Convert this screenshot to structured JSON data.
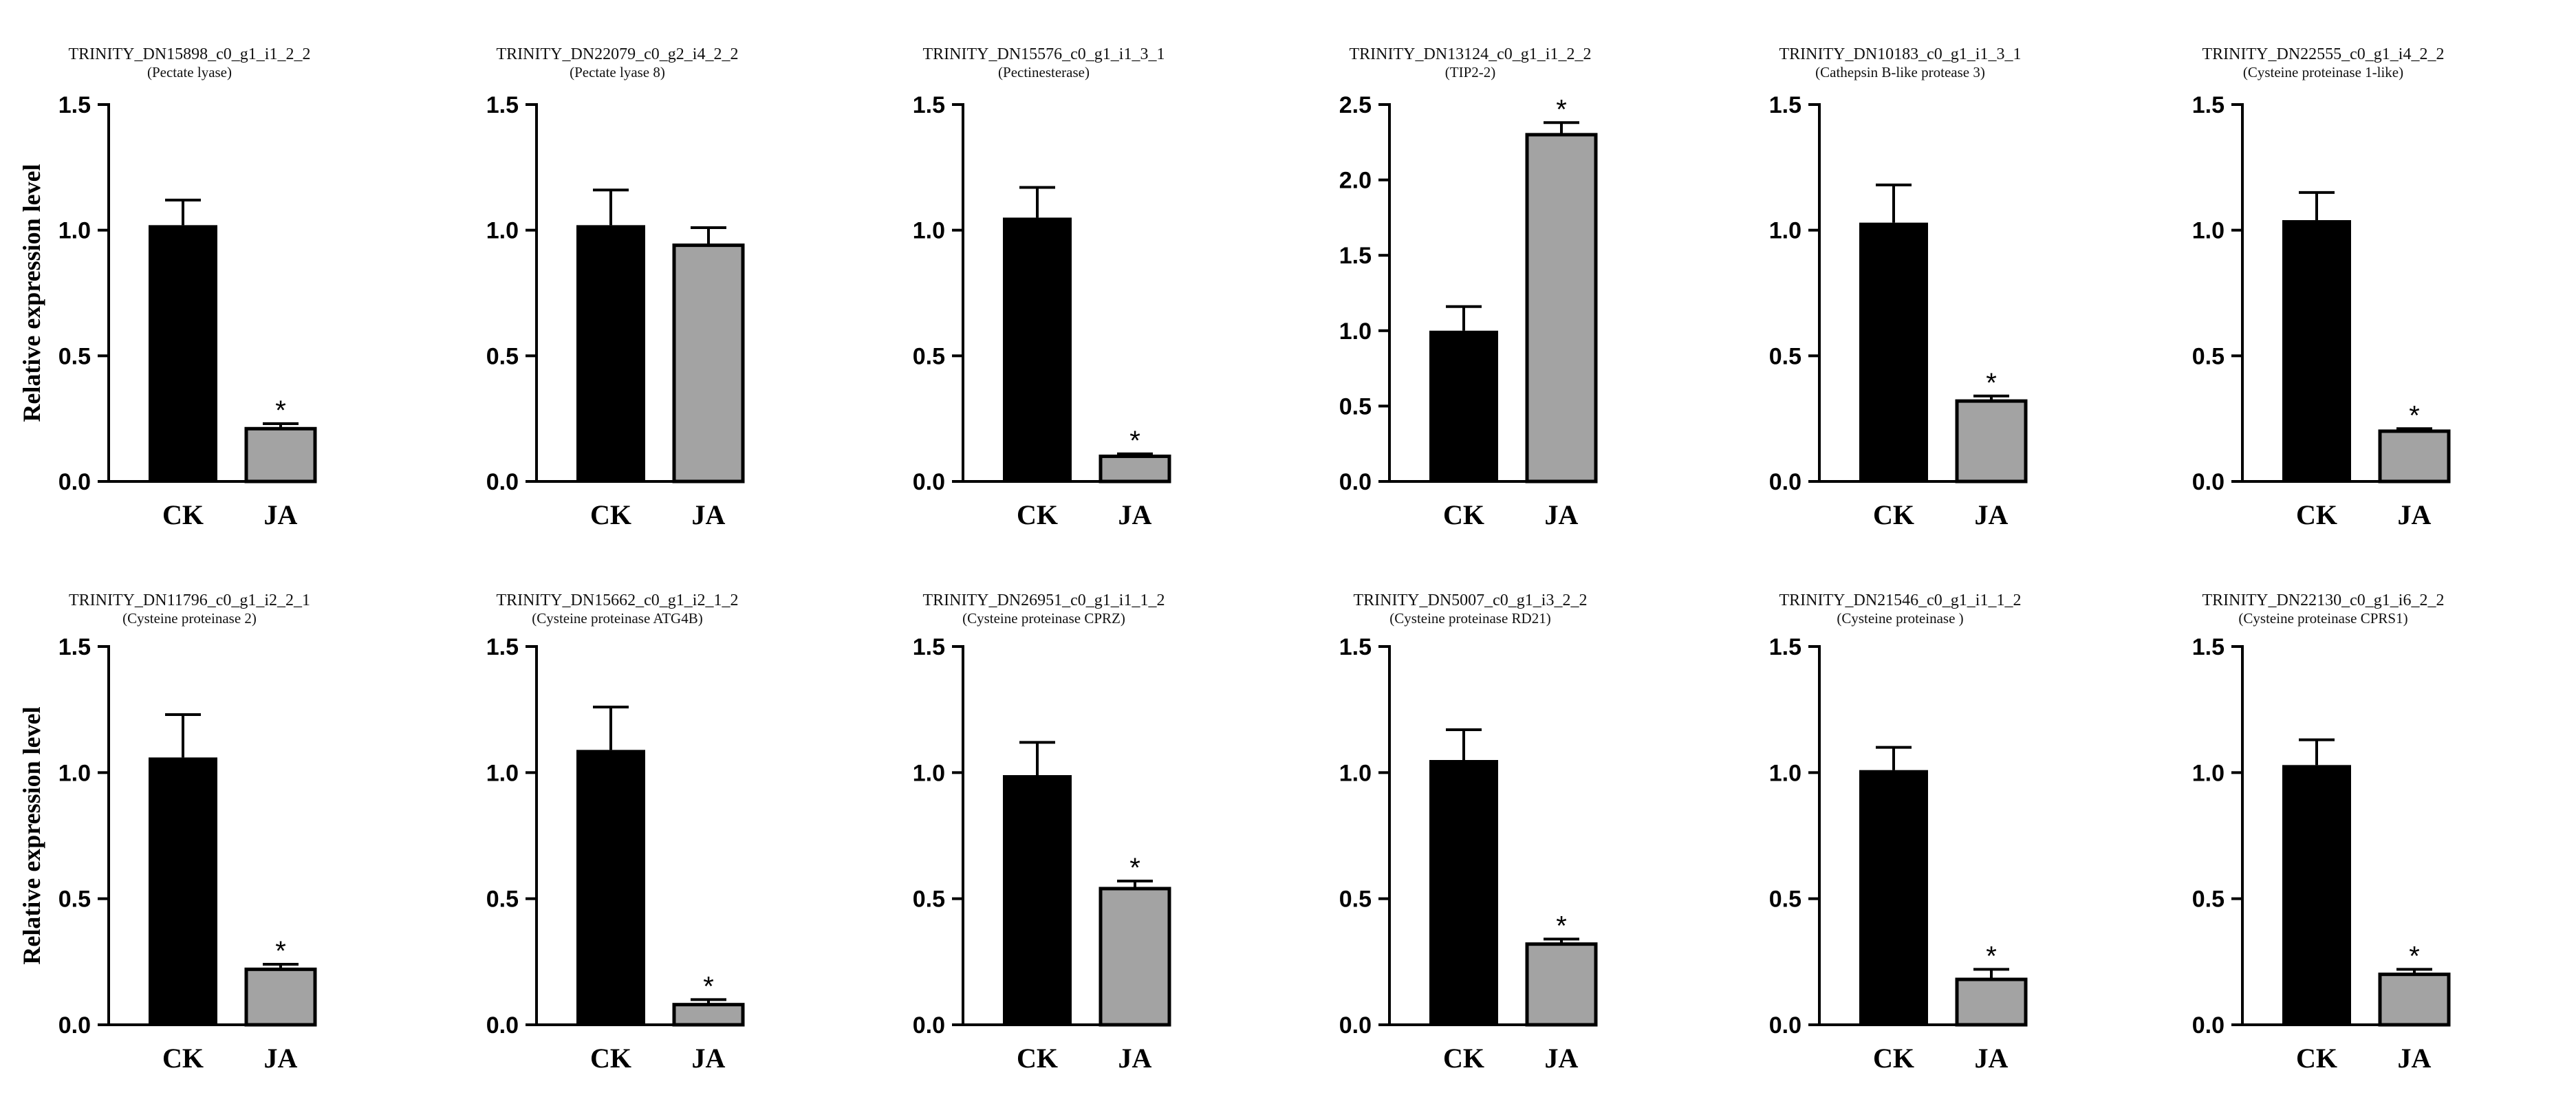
{
  "chart_data": [
    {
      "type": "bar",
      "title": "TRINITY_DN15898_c0_g1_i1_2_2",
      "subtitle": "(Pectate lyase)",
      "categories": [
        "CK",
        "JA"
      ],
      "values": [
        1.02,
        0.21
      ],
      "errors": [
        0.1,
        0.02
      ],
      "significance": [
        "",
        "*"
      ],
      "ylabel": "Relative expression level",
      "ylim": [
        0,
        1.5
      ],
      "yticks": [
        "0.0",
        "0.5",
        "1.0",
        "1.5"
      ],
      "colors": [
        "#000000",
        "#a3a3a3"
      ]
    },
    {
      "type": "bar",
      "title": "TRINITY_DN22079_c0_g2_i4_2_2",
      "subtitle": "(Pectate lyase 8)",
      "categories": [
        "CK",
        "JA"
      ],
      "values": [
        1.02,
        0.94
      ],
      "errors": [
        0.14,
        0.07
      ],
      "significance": [
        "",
        ""
      ],
      "ylabel": "",
      "ylim": [
        0,
        1.5
      ],
      "yticks": [
        "0.0",
        "0.5",
        "1.0",
        "1.5"
      ],
      "colors": [
        "#000000",
        "#a3a3a3"
      ]
    },
    {
      "type": "bar",
      "title": "TRINITY_DN15576_c0_g1_i1_3_1",
      "subtitle": "(Pectinesterase)",
      "categories": [
        "CK",
        "JA"
      ],
      "values": [
        1.05,
        0.1
      ],
      "errors": [
        0.12,
        0.01
      ],
      "significance": [
        "",
        "*"
      ],
      "ylabel": "",
      "ylim": [
        0,
        1.5
      ],
      "yticks": [
        "0.0",
        "0.5",
        "1.0",
        "1.5"
      ],
      "colors": [
        "#000000",
        "#a3a3a3"
      ]
    },
    {
      "type": "bar",
      "title": "TRINITY_DN13124_c0_g1_i1_2_2",
      "subtitle": "(TIP2-2)",
      "categories": [
        "CK",
        "JA"
      ],
      "values": [
        1.0,
        2.3
      ],
      "errors": [
        0.16,
        0.08
      ],
      "significance": [
        "",
        "*"
      ],
      "ylabel": "",
      "ylim": [
        0,
        2.5
      ],
      "yticks": [
        "0.0",
        "0.5",
        "1.0",
        "1.5",
        "2.0",
        "2.5"
      ],
      "colors": [
        "#000000",
        "#a3a3a3"
      ]
    },
    {
      "type": "bar",
      "title": "TRINITY_DN10183_c0_g1_i1_3_1",
      "subtitle": "(Cathepsin B-like protease 3)",
      "categories": [
        "CK",
        "JA"
      ],
      "values": [
        1.03,
        0.32
      ],
      "errors": [
        0.15,
        0.02
      ],
      "significance": [
        "",
        "*"
      ],
      "ylabel": "",
      "ylim": [
        0,
        1.5
      ],
      "yticks": [
        "0.0",
        "0.5",
        "1.0",
        "1.5"
      ],
      "colors": [
        "#000000",
        "#a3a3a3"
      ]
    },
    {
      "type": "bar",
      "title": "TRINITY_DN22555_c0_g1_i4_2_2",
      "subtitle": "(Cysteine proteinase 1-like)",
      "categories": [
        "CK",
        "JA"
      ],
      "values": [
        1.04,
        0.2
      ],
      "errors": [
        0.11,
        0.01
      ],
      "significance": [
        "",
        "*"
      ],
      "ylabel": "",
      "ylim": [
        0,
        1.5
      ],
      "yticks": [
        "0.0",
        "0.5",
        "1.0",
        "1.5"
      ],
      "colors": [
        "#000000",
        "#a3a3a3"
      ]
    },
    {
      "type": "bar",
      "title": "TRINITY_DN11796_c0_g1_i2_2_1",
      "subtitle": "(Cysteine proteinase 2)",
      "categories": [
        "CK",
        "JA"
      ],
      "values": [
        1.06,
        0.22
      ],
      "errors": [
        0.17,
        0.02
      ],
      "significance": [
        "",
        "*"
      ],
      "ylabel": "Relative expression level",
      "ylim": [
        0,
        1.5
      ],
      "yticks": [
        "0.0",
        "0.5",
        "1.0",
        "1.5"
      ],
      "colors": [
        "#000000",
        "#a3a3a3"
      ]
    },
    {
      "type": "bar",
      "title": "TRINITY_DN15662_c0_g1_i2_1_2",
      "subtitle": "(Cysteine proteinase ATG4B)",
      "categories": [
        "CK",
        "JA"
      ],
      "values": [
        1.09,
        0.08
      ],
      "errors": [
        0.17,
        0.02
      ],
      "significance": [
        "",
        "*"
      ],
      "ylabel": "",
      "ylim": [
        0,
        1.5
      ],
      "yticks": [
        "0.0",
        "0.5",
        "1.0",
        "1.5"
      ],
      "colors": [
        "#000000",
        "#a3a3a3"
      ]
    },
    {
      "type": "bar",
      "title": "TRINITY_DN26951_c0_g1_i1_1_2",
      "subtitle": "(Cysteine proteinase CPRZ)",
      "categories": [
        "CK",
        "JA"
      ],
      "values": [
        0.99,
        0.54
      ],
      "errors": [
        0.13,
        0.03
      ],
      "significance": [
        "",
        "*"
      ],
      "ylabel": "",
      "ylim": [
        0,
        1.5
      ],
      "yticks": [
        "0.0",
        "0.5",
        "1.0",
        "1.5"
      ],
      "colors": [
        "#000000",
        "#a3a3a3"
      ]
    },
    {
      "type": "bar",
      "title": "TRINITY_DN5007_c0_g1_i3_2_2",
      "subtitle": "(Cysteine proteinase RD21)",
      "categories": [
        "CK",
        "JA"
      ],
      "values": [
        1.05,
        0.32
      ],
      "errors": [
        0.12,
        0.02
      ],
      "significance": [
        "",
        "*"
      ],
      "ylabel": "",
      "ylim": [
        0,
        1.5
      ],
      "yticks": [
        "0.0",
        "0.5",
        "1.0",
        "1.5"
      ],
      "colors": [
        "#000000",
        "#a3a3a3"
      ]
    },
    {
      "type": "bar",
      "title": "TRINITY_DN21546_c0_g1_i1_1_2",
      "subtitle": "(Cysteine proteinase )",
      "categories": [
        "CK",
        "JA"
      ],
      "values": [
        1.01,
        0.18
      ],
      "errors": [
        0.09,
        0.04
      ],
      "significance": [
        "",
        "*"
      ],
      "ylabel": "",
      "ylim": [
        0,
        1.5
      ],
      "yticks": [
        "0.0",
        "0.5",
        "1.0",
        "1.5"
      ],
      "colors": [
        "#000000",
        "#a3a3a3"
      ]
    },
    {
      "type": "bar",
      "title": "TRINITY_DN22130_c0_g1_i6_2_2",
      "subtitle": "(Cysteine proteinase CPRS1)",
      "categories": [
        "CK",
        "JA"
      ],
      "values": [
        1.03,
        0.2
      ],
      "errors": [
        0.1,
        0.02
      ],
      "significance": [
        "",
        "*"
      ],
      "ylabel": "",
      "ylim": [
        0,
        1.5
      ],
      "yticks": [
        "0.0",
        "0.5",
        "1.0",
        "1.5"
      ],
      "colors": [
        "#000000",
        "#a3a3a3"
      ]
    }
  ]
}
